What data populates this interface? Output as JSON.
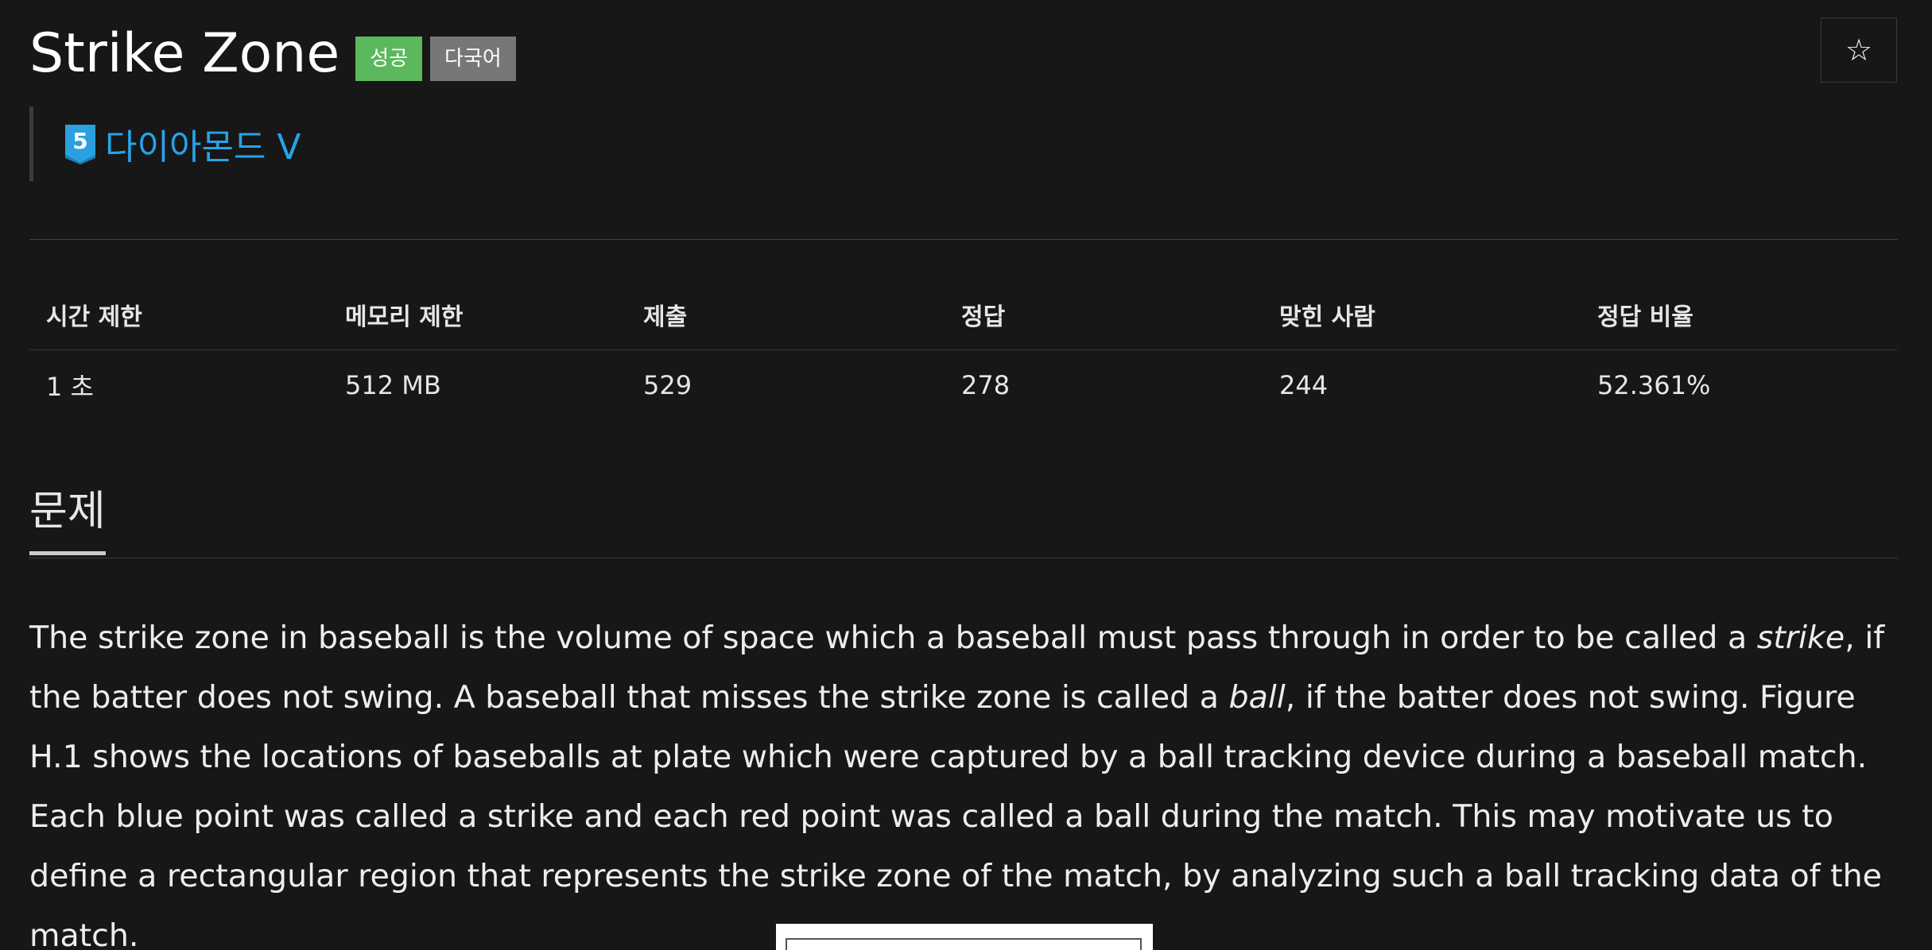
{
  "problem": {
    "title": "Strike Zone",
    "badges": {
      "success": "성공",
      "multilang": "다국어"
    },
    "tier": {
      "level": "5",
      "label": "다이아몬드 V"
    },
    "star_icon": "☆"
  },
  "info_table": {
    "headers": [
      "시간 제한",
      "메모리 제한",
      "제출",
      "정답",
      "맞힌 사람",
      "정답 비율"
    ],
    "values": [
      "1 초",
      "512 MB",
      "529",
      "278",
      "244",
      "52.361%"
    ]
  },
  "section": {
    "title": "문제"
  },
  "description": {
    "p1": "The strike zone in baseball is the volume of space which a baseball must pass through in order to be called a ",
    "strike": "strike",
    "p2": ", if the batter does not swing. A baseball that misses the strike zone is called a ",
    "ball": "ball",
    "p3": ", if the batter does not swing. Figure H.1 shows the locations of baseballs at plate which were captured by a ball tracking device during a baseball match. Each blue point was called a strike and each red point was called a ball during the match. This may motivate us to define a rectangular region that represents the strike zone of the match, by analyzing such a ball tracking data of the match."
  },
  "colors": {
    "background": "#171717",
    "success_badge": "#5cb85c",
    "multilang_badge": "#777777",
    "tier_link": "#27a3e8",
    "tier_icon": "#2aa0e0"
  }
}
